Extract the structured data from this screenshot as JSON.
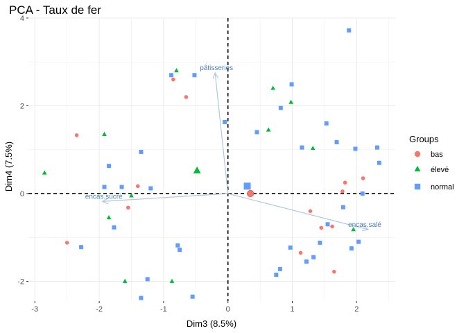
{
  "chart_data": {
    "type": "scatter",
    "title": "PCA - Taux de fer",
    "xlabel": "Dim3 (8.5%)",
    "ylabel": "Dim4 (7.5%)",
    "xlim": [
      -3.1,
      2.6
    ],
    "ylim": [
      -2.45,
      4.0
    ],
    "x_ticks": [
      -3,
      -2,
      -1,
      0,
      1,
      2
    ],
    "y_ticks": [
      -2,
      0,
      2,
      4
    ],
    "grid": true,
    "legend_title": "Groups",
    "legend_position": "right",
    "colors": {
      "bas": "#F8766D",
      "élevé": "#00BA38",
      "normal": "#619CFF",
      "arrow": "#b0c8e0",
      "arrow_label": "#4a7fb8"
    },
    "series": [
      {
        "name": "bas",
        "marker": "circle",
        "points": [
          [
            -2.35,
            1.33
          ],
          [
            -0.85,
            2.6
          ],
          [
            -0.65,
            2.2
          ],
          [
            -1.4,
            0.17
          ],
          [
            -1.55,
            -0.32
          ],
          [
            -2.5,
            -1.12
          ],
          [
            1.28,
            -0.4
          ],
          [
            1.45,
            -0.78
          ],
          [
            1.62,
            -0.75
          ],
          [
            1.82,
            0.25
          ],
          [
            2.1,
            0.35
          ],
          [
            1.78,
            0.05
          ],
          [
            1.13,
            -1.35
          ],
          [
            1.65,
            -1.78
          ]
        ]
      },
      {
        "name": "élevé",
        "marker": "triangle",
        "points": [
          [
            -2.85,
            0.47
          ],
          [
            -1.92,
            1.35
          ],
          [
            -0.8,
            2.8
          ],
          [
            -1.85,
            -0.55
          ],
          [
            -1.5,
            -0.05
          ],
          [
            -1.6,
            -2.0
          ],
          [
            -0.87,
            -2.0
          ],
          [
            0.7,
            2.4
          ],
          [
            0.98,
            2.08
          ],
          [
            0.63,
            1.45
          ],
          [
            1.32,
            1.03
          ],
          [
            1.95,
            -0.82
          ]
        ]
      },
      {
        "name": "normal",
        "marker": "square",
        "points": [
          [
            -1.85,
            0.63
          ],
          [
            -1.35,
            0.95
          ],
          [
            -1.92,
            0.15
          ],
          [
            -1.65,
            0.15
          ],
          [
            -1.2,
            0.12
          ],
          [
            -1.77,
            -0.77
          ],
          [
            -2.28,
            -1.22
          ],
          [
            -0.88,
            2.7
          ],
          [
            -0.52,
            2.7
          ],
          [
            -0.05,
            1.63
          ],
          [
            0.45,
            1.4
          ],
          [
            0.82,
            1.95
          ],
          [
            0.99,
            2.49
          ],
          [
            1.15,
            1.05
          ],
          [
            1.53,
            1.6
          ],
          [
            1.69,
            1.17
          ],
          [
            1.98,
            1.02
          ],
          [
            2.32,
            1.05
          ],
          [
            2.35,
            0.7
          ],
          [
            2.09,
            0.0
          ],
          [
            1.79,
            -0.31
          ],
          [
            1.55,
            -0.7
          ],
          [
            1.92,
            -1.25
          ],
          [
            2.03,
            -1.1
          ],
          [
            1.43,
            -1.12
          ],
          [
            0.97,
            -1.23
          ],
          [
            1.33,
            -1.45
          ],
          [
            1.22,
            -1.55
          ],
          [
            0.81,
            -1.72
          ],
          [
            0.75,
            -1.85
          ],
          [
            -0.78,
            -1.18
          ],
          [
            -0.75,
            -1.28
          ],
          [
            -1.25,
            -1.95
          ],
          [
            -1.35,
            -2.38
          ],
          [
            -0.55,
            -2.35
          ],
          [
            1.88,
            3.72
          ]
        ]
      }
    ],
    "centroids": [
      {
        "group": "bas",
        "x": 0.35,
        "y": 0.0
      },
      {
        "group": "élevé",
        "x": -0.48,
        "y": 0.52
      },
      {
        "group": "normal",
        "x": 0.3,
        "y": 0.17
      }
    ],
    "variables": [
      {
        "name": "pâtisseries",
        "x": -0.2,
        "y": 2.75
      },
      {
        "name": "encas.sucré",
        "x": -1.95,
        "y": -0.18
      },
      {
        "name": "encas.salé",
        "x": 2.18,
        "y": -0.82
      }
    ]
  }
}
